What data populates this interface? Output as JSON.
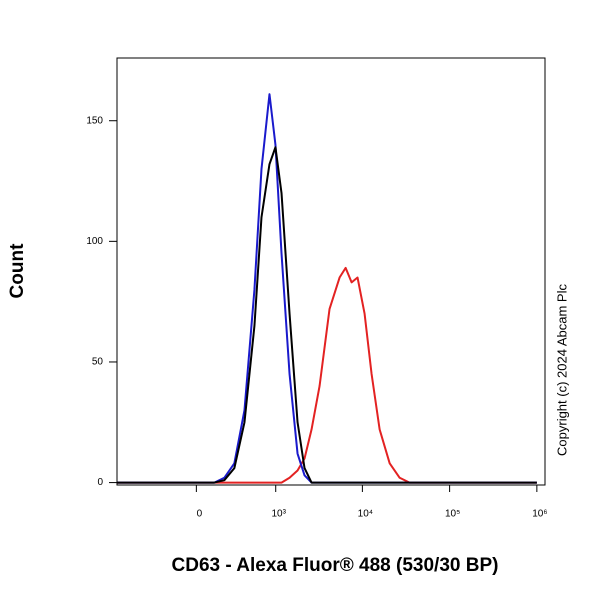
{
  "chart_data": {
    "type": "line",
    "x_label": "CD63 - Alexa Fluor® 488 (530/30 BP)",
    "y_label": "Count",
    "annotation": "Copyright (c) 2024 Abcam Plc",
    "xscale": "logicle",
    "xlim": [
      -1000,
      1240000
    ],
    "xticks": [
      0,
      {
        "value": 1000,
        "label": "10³"
      },
      {
        "value": 10000,
        "label": "10⁴"
      },
      {
        "value": 100000,
        "label": "10⁵"
      },
      {
        "value": 1000000,
        "label": "10⁶"
      }
    ],
    "ylim": [
      -1,
      176
    ],
    "yticks": [
      0,
      50,
      100,
      150
    ],
    "series": [
      {
        "color": "#e32222",
        "x": [
          -1000,
          1170,
          1452,
          1798,
          2165,
          2607,
          3225,
          4200,
          5475,
          6425,
          7525,
          8800,
          10600,
          12750,
          15775,
          20550,
          26750,
          34750,
          1000000
        ],
        "values": [
          0,
          0,
          2,
          5,
          10,
          22,
          40,
          72,
          85,
          89,
          83,
          85,
          70,
          45,
          22,
          8,
          2,
          0,
          0
        ]
      },
      {
        "color": "#1a1acc",
        "x": [
          -1000,
          123,
          202,
          295,
          410,
          552,
          675,
          843,
          993,
          1170,
          1452,
          1798,
          2165,
          2607,
          1000000
        ],
        "values": [
          0,
          0,
          2,
          8,
          30,
          80,
          130,
          161,
          140,
          95,
          45,
          12,
          3,
          0,
          0
        ]
      },
      {
        "color": "#000000",
        "x": [
          -1000,
          123,
          202,
          295,
          410,
          552,
          675,
          843,
          993,
          1170,
          1452,
          1798,
          2165,
          2607,
          1000000
        ],
        "values": [
          0,
          0,
          1,
          6,
          25,
          65,
          110,
          132,
          139,
          120,
          70,
          25,
          6,
          0,
          0
        ]
      }
    ]
  }
}
